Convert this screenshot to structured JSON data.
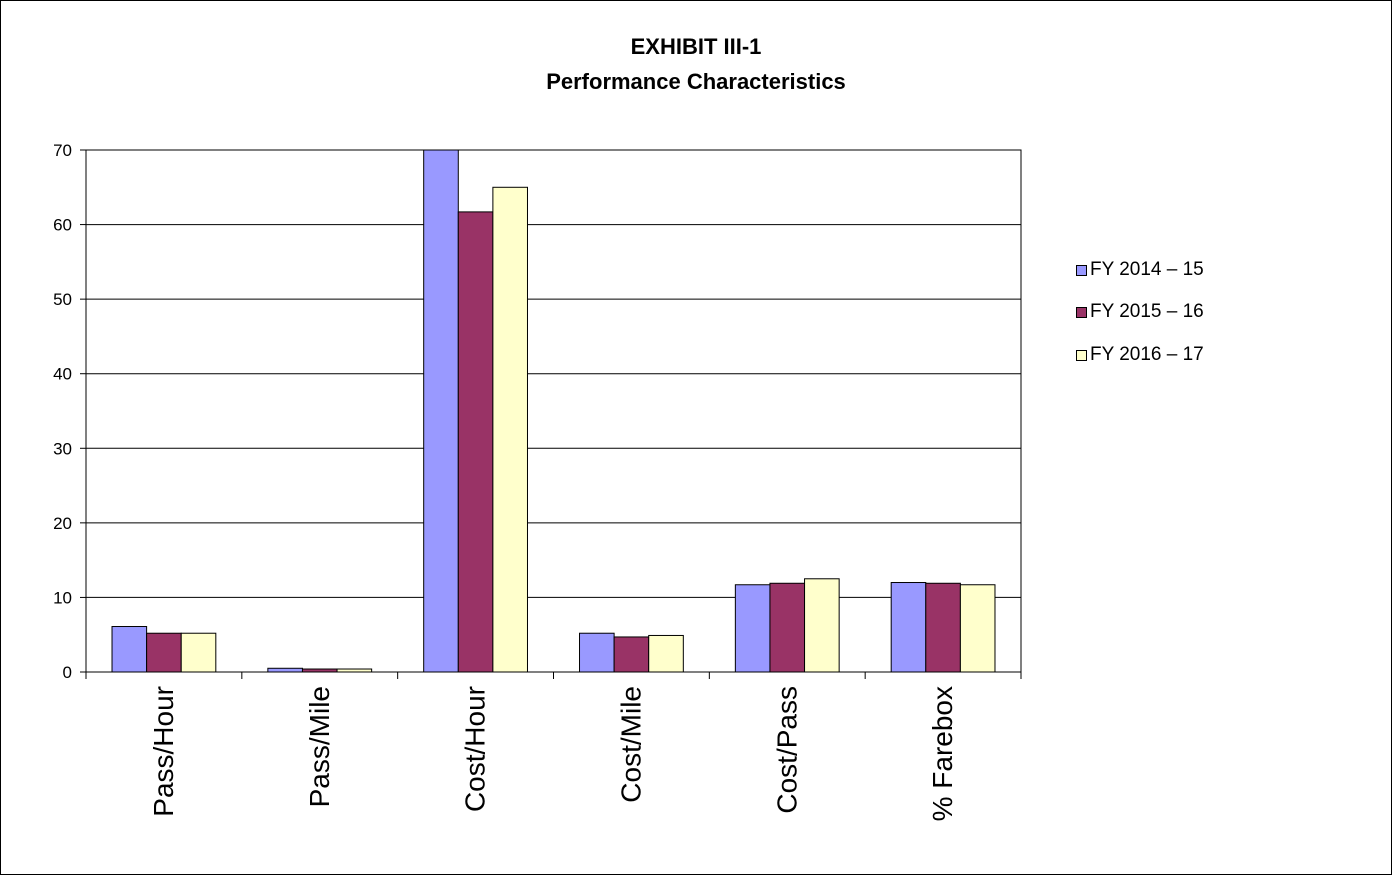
{
  "chart_data": {
    "type": "bar",
    "title": "EXHIBIT III-1",
    "subtitle": "Performance Characteristics",
    "categories": [
      "Pass/Hour",
      "Pass/Mile",
      "Cost/Hour",
      "Cost/Mile",
      "Cost/Pass",
      "% Farebox"
    ],
    "series": [
      {
        "name": "FY 2014 – 15",
        "color": "#9999ff",
        "values": [
          6.1,
          0.5,
          70,
          5.2,
          11.7,
          12.0
        ]
      },
      {
        "name": "FY 2015 – 16",
        "color": "#993366",
        "values": [
          5.2,
          0.4,
          61.7,
          4.7,
          11.9,
          11.9
        ]
      },
      {
        "name": "FY 2016 – 17",
        "color": "#ffffcc",
        "values": [
          5.2,
          0.4,
          65.0,
          4.9,
          12.5,
          11.7
        ]
      }
    ],
    "ylim": [
      0,
      70
    ],
    "yticks": [
      "0",
      "10",
      "20",
      "30",
      "40",
      "50",
      "60",
      "70"
    ],
    "grid": true,
    "legend": "right"
  }
}
